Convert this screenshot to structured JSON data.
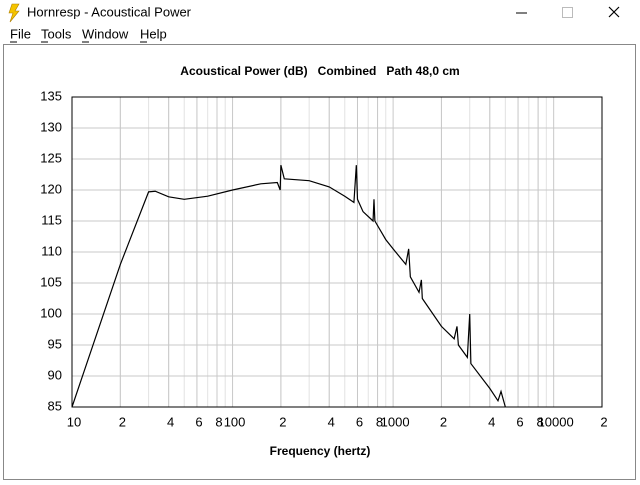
{
  "window": {
    "title": "Hornresp - Acoustical Power",
    "menu": [
      "File",
      "Tools",
      "Window",
      "Help"
    ]
  },
  "chart_data": {
    "type": "line",
    "title": "Acoustical Power (dB)   Combined   Path 48,0 cm",
    "x_label": "Frequency (hertz)",
    "log_x": true,
    "grid": true,
    "color": "#000000",
    "xlim": [
      10,
      20000
    ],
    "ylim": [
      85,
      135
    ],
    "xticks": [
      10,
      {
        "value": 20,
        "label": "2"
      },
      {
        "value": 40,
        "label": "4"
      },
      {
        "value": 60,
        "label": "6"
      },
      {
        "value": 80,
        "label": "8"
      },
      100,
      {
        "value": 200,
        "label": "2"
      },
      {
        "value": 400,
        "label": "4"
      },
      {
        "value": 600,
        "label": "6"
      },
      {
        "value": 800,
        "label": "8"
      },
      1000,
      {
        "value": 2000,
        "label": "2"
      },
      {
        "value": 4000,
        "label": "4"
      },
      {
        "value": 6000,
        "label": "6"
      },
      {
        "value": 8000,
        "label": "8"
      },
      10000,
      {
        "value": 20000,
        "label": "2"
      }
    ],
    "yticks": [
      85,
      90,
      95,
      100,
      105,
      110,
      115,
      120,
      125,
      130,
      135
    ],
    "x": [
      10,
      20,
      30,
      33,
      40,
      50,
      70,
      100,
      150,
      190,
      198,
      200,
      210,
      300,
      400,
      500,
      570,
      590,
      600,
      650,
      750,
      760,
      770,
      900,
      1000,
      1200,
      1250,
      1280,
      1450,
      1500,
      1520,
      2000,
      2400,
      2500,
      2550,
      2900,
      3000,
      3050,
      4000,
      4500,
      4700,
      5000
    ],
    "values": [
      85,
      108,
      119.7,
      119.8,
      118.9,
      118.5,
      119,
      120,
      121,
      121.2,
      120,
      124,
      121.8,
      121.5,
      120.5,
      119,
      118,
      124,
      118.5,
      116.5,
      115,
      118.5,
      115,
      112,
      110.5,
      108,
      110.5,
      106,
      103.5,
      105.5,
      102.5,
      98,
      96,
      98,
      95,
      93,
      100,
      92,
      88,
      86,
      87.5,
      85
    ]
  }
}
